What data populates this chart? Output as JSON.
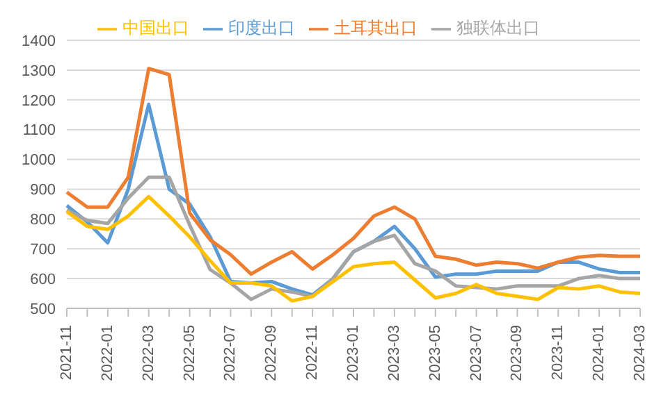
{
  "chart_data": {
    "type": "line",
    "categories": [
      "2021-11",
      null,
      "2022-01",
      null,
      "2022-03",
      null,
      "2022-05",
      null,
      "2022-07",
      null,
      "2022-09",
      null,
      "2022-11",
      null,
      "2023-01",
      null,
      "2023-03",
      null,
      "2023-05",
      null,
      "2023-07",
      null,
      "2023-09",
      null,
      "2023-11",
      null,
      "2024-01",
      null,
      "2024-03"
    ],
    "series": [
      {
        "name": "印度出口",
        "color": "#5b9bd5",
        "values": [
          845,
          790,
          720,
          900,
          1185,
          900,
          850,
          740,
          590,
          585,
          590,
          565,
          545,
          600,
          690,
          725,
          775,
          700,
          605,
          615,
          615,
          625,
          625,
          625,
          655,
          655,
          632,
          620,
          620
        ]
      },
      {
        "name": "土耳其出口",
        "color": "#ed7d31",
        "values": [
          890,
          840,
          840,
          940,
          1305,
          1285,
          820,
          730,
          680,
          615,
          655,
          690,
          632,
          680,
          735,
          810,
          840,
          800,
          675,
          665,
          645,
          655,
          650,
          635,
          655,
          672,
          678,
          675,
          675
        ]
      },
      {
        "name": "独联体出口",
        "color": "#a5a5a5",
        "values": [
          830,
          795,
          785,
          870,
          940,
          940,
          780,
          630,
          585,
          530,
          565,
          555,
          540,
          600,
          690,
          725,
          745,
          650,
          625,
          575,
          570,
          565,
          575,
          575,
          575,
          600,
          610,
          600,
          600
        ]
      },
      {
        "name": "中国出口",
        "color": "#ffc000",
        "values": [
          825,
          775,
          765,
          810,
          875,
          810,
          740,
          660,
          585,
          585,
          575,
          525,
          540,
          590,
          640,
          650,
          655,
          595,
          535,
          550,
          580,
          550,
          540,
          530,
          570,
          565,
          575,
          555,
          550
        ]
      }
    ],
    "ylim": [
      500,
      1400
    ],
    "yticks": [
      500,
      600,
      700,
      800,
      900,
      1000,
      1100,
      1200,
      1300,
      1400
    ],
    "grid": "y",
    "legend": "top",
    "marker": "none",
    "line_style": "solid"
  }
}
